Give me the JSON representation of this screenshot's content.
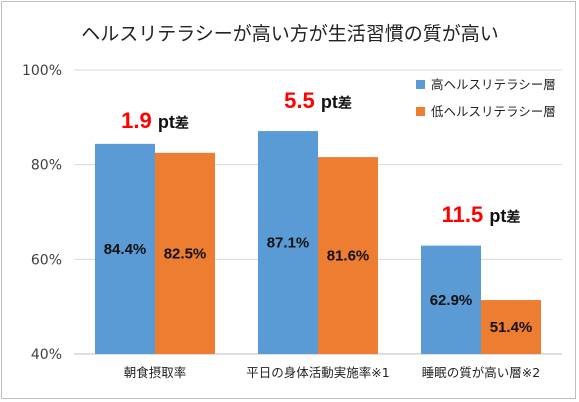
{
  "chart_data": {
    "type": "bar",
    "title": "ヘルスリテラシーが高い方が生活習慣の質が高い",
    "categories": [
      "朝食摂取率",
      "平日の身体活動実施率※1",
      "睡眠の質が高い層※2"
    ],
    "series": [
      {
        "name": "高ヘルスリテラシー層",
        "color": "#5b9bd5",
        "values": [
          84.4,
          87.1,
          62.9
        ],
        "labels": [
          "84.4%",
          "87.1%",
          "62.9%"
        ]
      },
      {
        "name": "低ヘルスリテラシー層",
        "color": "#ed7d31",
        "values": [
          82.5,
          81.6,
          51.4
        ],
        "labels": [
          "82.5%",
          "81.6%",
          "51.4%"
        ]
      }
    ],
    "ylim": [
      40,
      100
    ],
    "yticks": [
      40,
      60,
      80,
      100
    ],
    "ytick_labels": [
      "40%",
      "60%",
      "80%",
      "100%"
    ],
    "grid": true,
    "legend_position": "top-right",
    "annotations": [
      {
        "value": "1.9",
        "unit": "pt",
        "suffix": "差"
      },
      {
        "value": "5.5",
        "unit": "pt",
        "suffix": "差"
      },
      {
        "value": "11.5",
        "unit": "pt",
        "suffix": "差"
      }
    ],
    "annotation_color": "#ff0000",
    "grid_color": "#d9d9d9",
    "axis_color": "#bfbfbf"
  }
}
